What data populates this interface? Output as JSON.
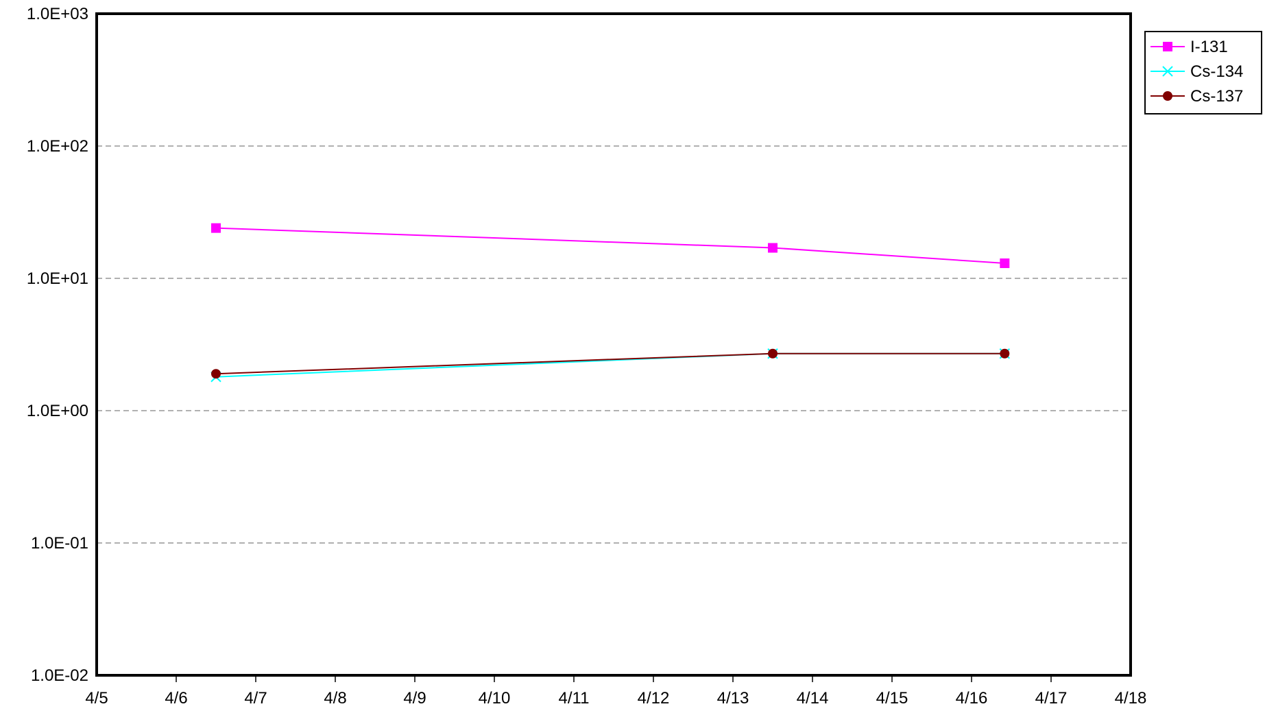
{
  "chart_data": {
    "type": "line",
    "title": "",
    "xlabel": "",
    "ylabel": "",
    "x_scale": "date",
    "y_scale": "log",
    "x_ticks": [
      "4/5",
      "4/6",
      "4/7",
      "4/8",
      "4/9",
      "4/10",
      "4/11",
      "4/12",
      "4/13",
      "4/14",
      "4/15",
      "4/16",
      "4/17",
      "4/18"
    ],
    "y_ticks": [
      "1.0E-02",
      "1.0E-01",
      "1.0E+00",
      "1.0E+01",
      "1.0E+02",
      "1.0E+03"
    ],
    "xlim": [
      "4/5",
      "4/18"
    ],
    "ylim": [
      0.01,
      1000
    ],
    "grid": "horizontal dashed",
    "legend_position": "top-right",
    "series": [
      {
        "name": "I-131",
        "color": "#ff00ff",
        "marker": "square",
        "points": [
          {
            "x": "4/6 12:00",
            "y": 24
          },
          {
            "x": "4/13 12:00",
            "y": 17
          },
          {
            "x": "4/16 10:00",
            "y": 13
          }
        ]
      },
      {
        "name": "Cs-134",
        "color": "#00ffff",
        "marker": "x",
        "points": [
          {
            "x": "4/6 12:00",
            "y": 1.8
          },
          {
            "x": "4/13 12:00",
            "y": 2.7
          },
          {
            "x": "4/16 10:00",
            "y": 2.7
          }
        ]
      },
      {
        "name": "Cs-137",
        "color": "#800000",
        "marker": "circle",
        "points": [
          {
            "x": "4/6 12:00",
            "y": 1.9
          },
          {
            "x": "4/13 12:00",
            "y": 2.7
          },
          {
            "x": "4/16 10:00",
            "y": 2.7
          }
        ]
      }
    ]
  }
}
